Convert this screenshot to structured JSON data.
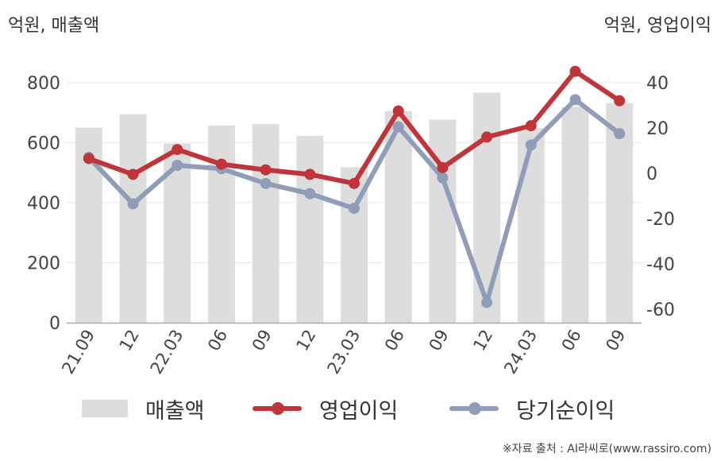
{
  "chart_data": {
    "type": "bar+line",
    "left_axis_unit": "억원, 매출액",
    "right_axis_unit": "억원, 영업이익",
    "categories": [
      "21.09",
      "12",
      "22.03",
      "06",
      "09",
      "12",
      "23.03",
      "06",
      "09",
      "12",
      "24.03",
      "06",
      "09"
    ],
    "y_left": {
      "min": 0,
      "max": 800,
      "ticks": [
        0,
        200,
        400,
        600,
        800
      ]
    },
    "y_right": {
      "min": -60,
      "max": 40,
      "ticks": [
        -60,
        -40,
        -20,
        0,
        20,
        40
      ]
    },
    "series": [
      {
        "name": "매출액",
        "kind": "bar",
        "axis": "left",
        "color": "#dddddd",
        "values": [
          650,
          695,
          597,
          657,
          662,
          623,
          518,
          705,
          677,
          767,
          648,
          720,
          732
        ]
      },
      {
        "name": "영업이익",
        "kind": "line",
        "axis": "right",
        "color": "#c0353a",
        "values": [
          6.5,
          -0.5,
          10.5,
          4,
          1.5,
          -0.5,
          -4.5,
          27.5,
          2.5,
          16,
          21,
          45,
          32
        ]
      },
      {
        "name": "당기순이익",
        "kind": "line",
        "axis": "right",
        "color": "#8f9db8",
        "values": [
          7,
          -13.5,
          3.5,
          2,
          -4.5,
          -9,
          -15.5,
          20.5,
          -2,
          -57,
          12.5,
          32.5,
          17.5
        ]
      }
    ],
    "grid": true,
    "legend_position": "bottom"
  },
  "source": "※자료 출처 : AI라씨로(www.rassiro.com)"
}
